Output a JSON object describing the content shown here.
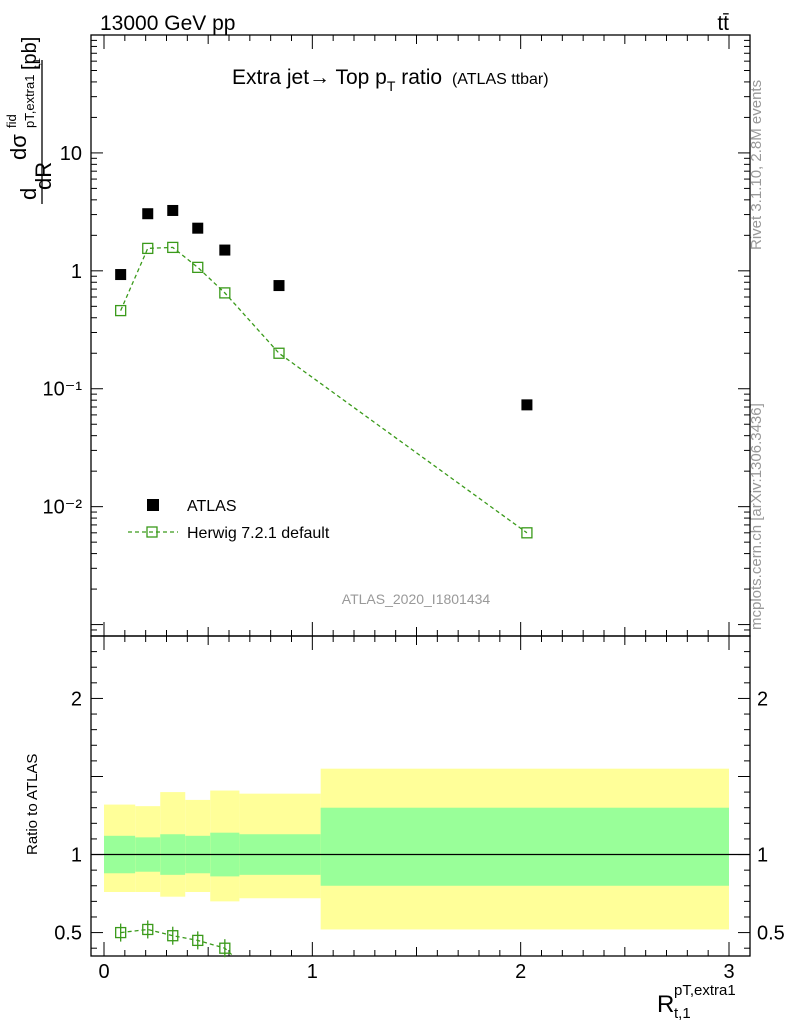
{
  "header": {
    "left": "13000 GeV pp",
    "right": "tt̄"
  },
  "title": {
    "main": "Extra jet→ Top p",
    "sub": "T",
    "tail": " ratio",
    "small": "(ATLAS ttbar)"
  },
  "side_labels": {
    "rivet": "Rivet 3.1.10,  2.8M events",
    "mcplots": "mcplots.cern.ch [arXiv:1306.3436]"
  },
  "watermark": "ATLAS_2020_I1801434",
  "ylabel": {
    "d1": "d",
    "dsigma": "dσ",
    "fid": "fid",
    "sub": "pT,extra1",
    "sub2": "t,1",
    "dR": "dR",
    "unit": "[pb]"
  },
  "ratio_ylabel": "Ratio to ATLAS",
  "xlabel": {
    "main": "R",
    "sup": "pT,extra1",
    "sub": "t,1"
  },
  "legend": {
    "data_label": "ATLAS",
    "mc_label": "Herwig 7.2.1 default"
  },
  "colors": {
    "data": "#000000",
    "mc": "#3a9a1a",
    "band_inner": "#99ff99",
    "band_outer": "#ffff99"
  },
  "chart_data": {
    "type": "scatter",
    "x_ticks": [
      "0",
      "1",
      "2",
      "3"
    ],
    "main": {
      "scale": "log",
      "ylim": [
        0.0008,
        100
      ],
      "y_tick_labels": [
        "10⁻²",
        "10⁻¹",
        "1",
        "10"
      ],
      "y_tick_values": [
        0.01,
        0.1,
        1,
        10
      ],
      "series": [
        {
          "name": "ATLAS",
          "x": [
            0.08,
            0.21,
            0.33,
            0.45,
            0.58,
            0.84,
            2.03
          ],
          "y": [
            0.93,
            3.05,
            3.25,
            2.3,
            1.5,
            0.75,
            0.073
          ]
        },
        {
          "name": "Herwig 7.2.1 default",
          "x": [
            0.08,
            0.21,
            0.33,
            0.45,
            0.58,
            0.84,
            2.03
          ],
          "y": [
            0.46,
            1.55,
            1.58,
            1.07,
            0.65,
            0.2,
            0.006
          ]
        }
      ]
    },
    "ratio": {
      "ylim": [
        0.35,
        2.4
      ],
      "y_tick_labels": [
        "0.5",
        "1",
        "2"
      ],
      "y_tick_values": [
        0.5,
        1,
        2
      ],
      "bins": [
        0,
        0.15,
        0.27,
        0.39,
        0.51,
        0.65,
        1.04,
        3
      ],
      "band_inner_low": [
        0.88,
        0.89,
        0.87,
        0.88,
        0.86,
        0.87,
        0.8
      ],
      "band_inner_high": [
        1.12,
        1.11,
        1.13,
        1.12,
        1.14,
        1.13,
        1.3
      ],
      "band_outer_low": [
        0.76,
        0.76,
        0.73,
        0.76,
        0.7,
        0.72,
        0.52
      ],
      "band_outer_high": [
        1.32,
        1.31,
        1.4,
        1.35,
        1.41,
        1.39,
        1.55
      ],
      "mc_x": [
        0.08,
        0.21,
        0.33,
        0.45,
        0.58
      ],
      "mc_y": [
        0.5,
        0.52,
        0.48,
        0.45,
        0.4
      ]
    }
  }
}
